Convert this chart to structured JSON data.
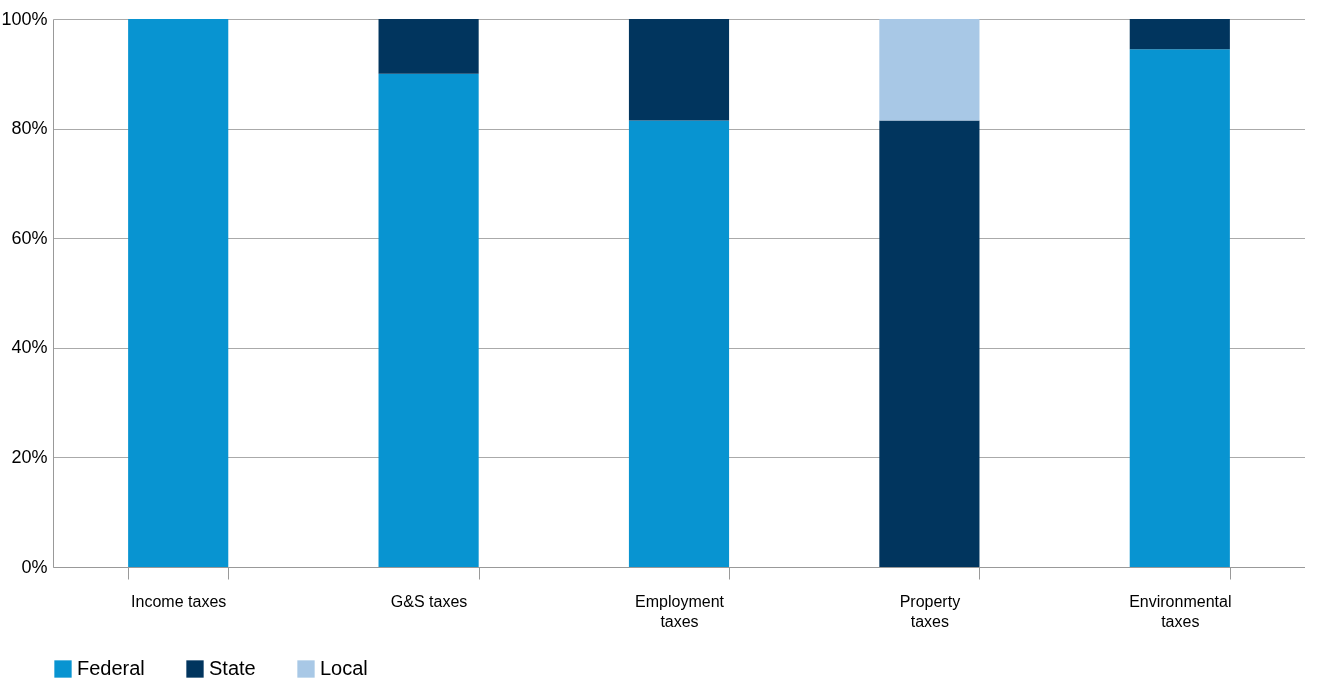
{
  "chart_data": {
    "type": "bar",
    "stacked": true,
    "categories": [
      "Income taxes",
      "G&S taxes",
      "Employment taxes",
      "Property taxes",
      "Environmental taxes"
    ],
    "series": [
      {
        "name": "Federal",
        "color": "#0894d1",
        "values": [
          100,
          90,
          81.5,
          0,
          94.5
        ]
      },
      {
        "name": "State",
        "color": "#01355e",
        "values": [
          0,
          10,
          18.5,
          81.5,
          5.5
        ]
      },
      {
        "name": "Local",
        "color": "#a8c8e6",
        "values": [
          0,
          0,
          0,
          18.5,
          0
        ]
      }
    ],
    "ylim": [
      0,
      100
    ],
    "yticks": [
      {
        "value": 0,
        "label": "0%"
      },
      {
        "value": 20,
        "label": "20%"
      },
      {
        "value": 40,
        "label": "40%"
      },
      {
        "value": 60,
        "label": "60%"
      },
      {
        "value": 80,
        "label": "80%"
      },
      {
        "value": 100,
        "label": "100%"
      }
    ],
    "grid": "y",
    "legend": "bottom"
  }
}
